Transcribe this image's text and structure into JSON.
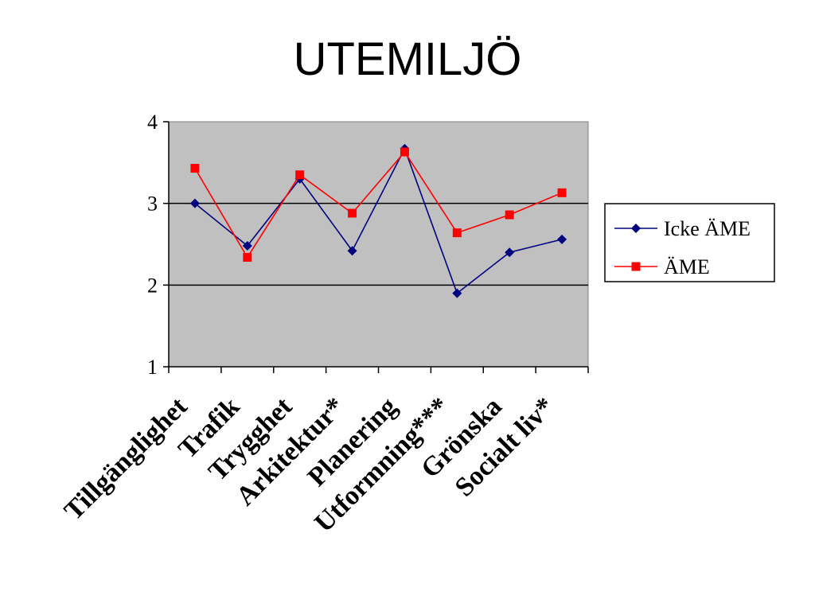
{
  "slide": {
    "title": "UTEMILJÖ"
  },
  "chart_data": {
    "type": "line",
    "title": "",
    "xlabel": "",
    "ylabel": "",
    "categories": [
      "Tillgänglighet",
      "Trafik",
      "Trygghet",
      "Arkitektur*",
      "Planering",
      "Utformning***",
      "Grönska",
      "Socialt liv*"
    ],
    "series": [
      {
        "name": "Icke ÄME",
        "color": "#000080",
        "marker": "diamond",
        "values": [
          3.0,
          2.48,
          3.3,
          2.42,
          3.67,
          1.9,
          2.4,
          2.56
        ]
      },
      {
        "name": "ÄME",
        "color": "#ff0000",
        "marker": "square",
        "values": [
          3.43,
          2.34,
          3.35,
          2.88,
          3.63,
          2.64,
          2.86,
          3.13
        ]
      }
    ],
    "ylim": [
      1,
      4
    ],
    "yticks": [
      "1",
      "2",
      "3",
      "4"
    ],
    "grid": true,
    "plot_background": "#c0c0c0",
    "legend_position": "right"
  }
}
